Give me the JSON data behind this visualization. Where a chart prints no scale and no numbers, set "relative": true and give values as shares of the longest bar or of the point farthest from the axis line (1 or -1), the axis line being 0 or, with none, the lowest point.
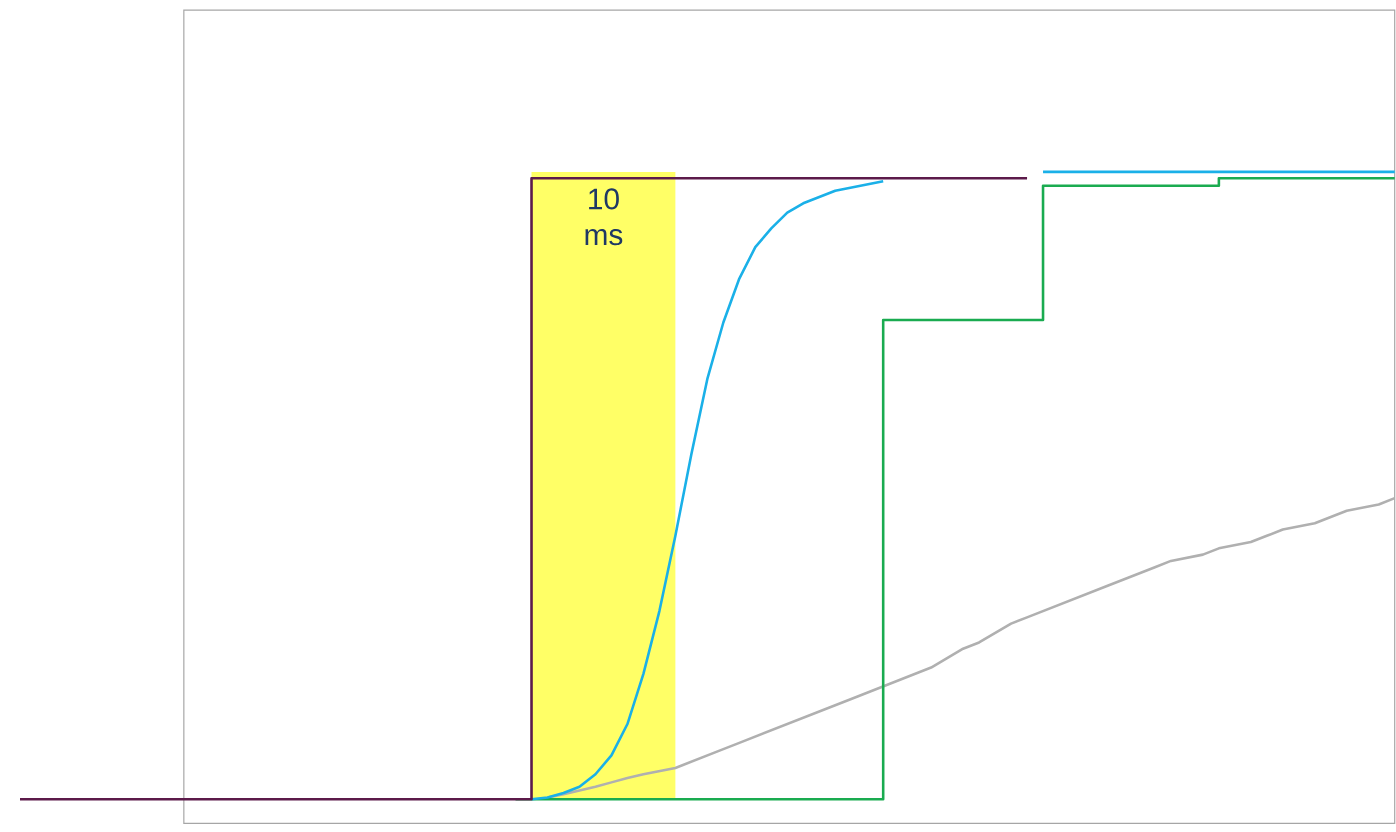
{
  "chart_data": {
    "type": "line",
    "relative": true,
    "line_style": "solid",
    "marker": "none",
    "categories": [
      null,
      null,
      null,
      null,
      null,
      null,
      null,
      null,
      null,
      null,
      null,
      null,
      null,
      null,
      null,
      null,
      null,
      null,
      null,
      null,
      null,
      null,
      null,
      null,
      null,
      null,
      null,
      null,
      null,
      null,
      null,
      null,
      null,
      null,
      null,
      null,
      null,
      null,
      null,
      null,
      null,
      null,
      null,
      null,
      null,
      null,
      null,
      null,
      null,
      null,
      null,
      null,
      null,
      null,
      null,
      null,
      null,
      null,
      null,
      null,
      null,
      null,
      null,
      null,
      null,
      null,
      null,
      null,
      null,
      null,
      null,
      null,
      null,
      null,
      null,
      null,
      null,
      null,
      null,
      null,
      null,
      null,
      null,
      null,
      null,
      null,
      null
    ],
    "series": [
      {
        "color": "#b0b0b0",
        "values": [
          null,
          null,
          null,
          null,
          null,
          null,
          null,
          null,
          null,
          null,
          null,
          null,
          null,
          null,
          null,
          null,
          null,
          null,
          null,
          null,
          null,
          null,
          null,
          null,
          null,
          null,
          null,
          null,
          null,
          null,
          null,
          null,
          null,
          0.003,
          0.008,
          0.014,
          0.02,
          0.027,
          0.034,
          0.04,
          0.045,
          0.05,
          0.06,
          0.07,
          0.08,
          0.09,
          0.1,
          0.11,
          0.12,
          0.13,
          0.14,
          0.15,
          0.16,
          0.17,
          0.18,
          0.19,
          0.2,
          0.21,
          0.225,
          0.24,
          0.25,
          0.265,
          0.28,
          0.29,
          0.3,
          0.31,
          0.32,
          0.33,
          0.34,
          0.35,
          0.36,
          0.37,
          0.38,
          0.385,
          0.39,
          0.4,
          0.405,
          0.41,
          0.42,
          0.43,
          0.435,
          0.44,
          0.45,
          0.46,
          0.465,
          0.47,
          0.48
        ]
      },
      {
        "type": "step",
        "color": "#1aab50",
        "values": [
          null,
          null,
          null,
          null,
          null,
          null,
          null,
          null,
          null,
          null,
          null,
          null,
          null,
          null,
          null,
          null,
          null,
          null,
          null,
          null,
          null,
          null,
          null,
          null,
          null,
          null,
          null,
          null,
          null,
          null,
          null,
          0,
          0,
          0,
          0,
          0,
          0,
          0,
          0,
          0,
          0,
          0,
          0,
          0,
          0,
          0,
          0,
          0,
          0,
          0,
          0,
          0,
          0,
          0,
          0.764,
          0.764,
          0.764,
          0.764,
          0.764,
          0.764,
          0.764,
          0.764,
          0.764,
          0.764,
          0.978,
          0.978,
          0.978,
          0.978,
          0.978,
          0.978,
          0.978,
          0.978,
          0.978,
          0.978,
          0.978,
          0.99,
          0.99,
          0.99,
          0.99,
          0.99,
          0.99,
          0.99,
          0.99,
          0.99,
          0.99,
          0.99,
          0.99
        ]
      },
      {
        "color": "#1ab0e8",
        "values": [
          null,
          null,
          null,
          null,
          null,
          null,
          null,
          null,
          null,
          null,
          null,
          null,
          null,
          null,
          null,
          null,
          null,
          null,
          null,
          null,
          null,
          null,
          null,
          null,
          null,
          null,
          null,
          null,
          null,
          null,
          null,
          null,
          0,
          0.003,
          0.01,
          0.02,
          0.04,
          0.07,
          0.12,
          0.2,
          0.3,
          0.42,
          0.55,
          0.67,
          0.76,
          0.83,
          0.88,
          0.91,
          0.935,
          0.95,
          0.96,
          0.97,
          0.975,
          0.98,
          0.985,
          null,
          null,
          null,
          null,
          null,
          null,
          null,
          null,
          null,
          1,
          1,
          1,
          1,
          1,
          1,
          1,
          1,
          1,
          1,
          1,
          1,
          1,
          1,
          1,
          1,
          1,
          1,
          1,
          1,
          1,
          1,
          1
        ]
      },
      {
        "type": "step",
        "color": "#5c1a4a",
        "values": [
          0,
          0,
          0,
          0,
          0,
          0,
          0,
          0,
          0,
          0,
          0,
          0,
          0,
          0,
          0,
          0,
          0,
          0,
          0,
          0,
          0,
          0,
          0,
          0,
          0,
          0,
          0,
          0,
          0,
          0,
          0,
          0,
          0.99,
          0.99,
          0.99,
          0.99,
          0.99,
          0.99,
          0.99,
          0.99,
          0.99,
          0.99,
          0.99,
          0.99,
          0.99,
          0.99,
          0.99,
          0.99,
          0.99,
          0.99,
          0.99,
          0.99,
          0.99,
          0.99,
          0.99,
          0.99,
          0.99,
          0.99,
          0.99,
          0.99,
          0.99,
          0.99,
          0.99,
          0.99,
          null,
          null,
          null,
          null,
          null,
          null,
          null,
          null,
          null,
          null,
          null,
          null,
          null,
          null,
          null,
          null,
          null,
          null,
          null,
          null,
          null,
          null,
          null
        ]
      }
    ],
    "annotations": [
      "10 ms"
    ]
  }
}
